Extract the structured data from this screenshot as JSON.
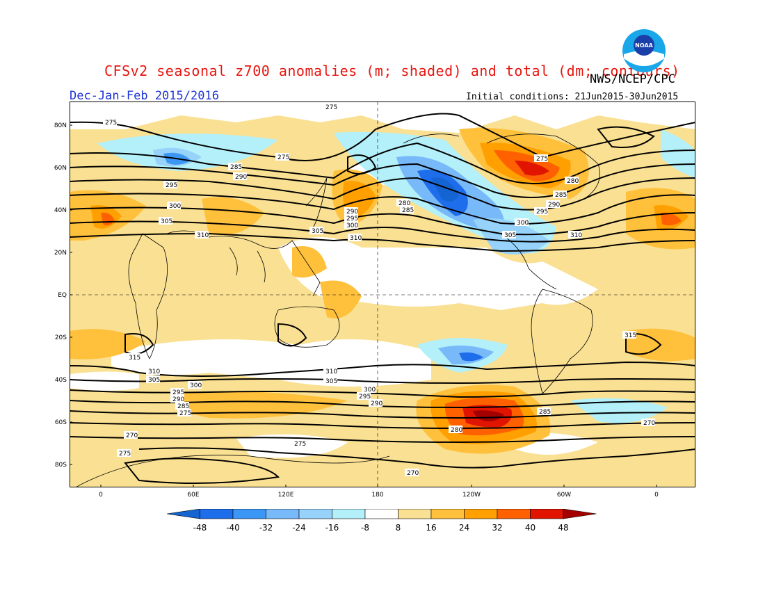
{
  "header": {
    "title": "CFSv2 seasonal z700 anomalies (m; shaded) and total (dm; contours)",
    "agency": "NWS/NCEP/CPC",
    "season": "Dec-Jan-Feb 2015/2016",
    "initial_conditions": "Initial conditions: 21Jun2015-30Jun2015",
    "logo_text": "NOAA"
  },
  "axes": {
    "lat_labels": [
      "80N",
      "60N",
      "40N",
      "20N",
      "EQ",
      "20S",
      "40S",
      "60S",
      "80S"
    ],
    "lon_labels": [
      "0",
      "60E",
      "120E",
      "180",
      "120W",
      "60W",
      "0"
    ]
  },
  "legend": {
    "ticks": [
      "-48",
      "-40",
      "-32",
      "-24",
      "-16",
      "-8",
      "8",
      "16",
      "24",
      "32",
      "40",
      "48"
    ],
    "colors": [
      "#1464d2",
      "#1e6eeb",
      "#3c96f5",
      "#78b9fa",
      "#96d2fa",
      "#b4f0fa",
      "#ffffff",
      "#fae092",
      "#ffc03c",
      "#ffa000",
      "#ff6000",
      "#e11400",
      "#a50000"
    ]
  },
  "contours": {
    "labels": [
      "275",
      "275",
      "275",
      "280",
      "285",
      "290",
      "295",
      "300",
      "305",
      "310",
      "280",
      "285",
      "290",
      "295",
      "300",
      "305",
      "310",
      "275",
      "280",
      "285",
      "290",
      "295",
      "300",
      "305",
      "310",
      "315",
      "315",
      "310",
      "305",
      "300",
      "295",
      "290",
      "285",
      "275",
      "270",
      "270",
      "275",
      "280",
      "270",
      "275",
      "310",
      "305",
      "300",
      "295",
      "290",
      "285"
    ]
  }
}
